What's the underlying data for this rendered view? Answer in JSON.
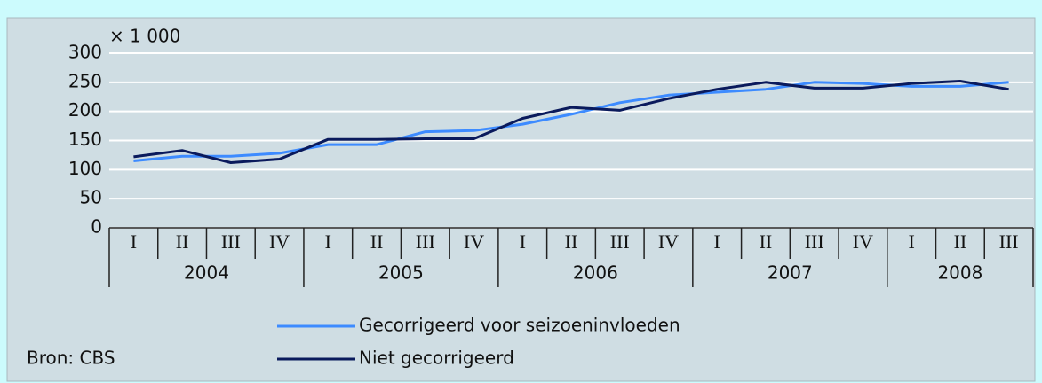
{
  "chart_data": {
    "type": "line",
    "unit_label": "× 1 000",
    "source": "Bron: CBS",
    "categories": [
      "I",
      "II",
      "III",
      "IV",
      "I",
      "II",
      "III",
      "IV",
      "I",
      "II",
      "III",
      "IV",
      "I",
      "II",
      "III",
      "IV",
      "I",
      "II",
      "III"
    ],
    "years": [
      {
        "label": "2004",
        "quarters": 4
      },
      {
        "label": "2005",
        "quarters": 4
      },
      {
        "label": "2006",
        "quarters": 4
      },
      {
        "label": "2007",
        "quarters": 4
      },
      {
        "label": "2008",
        "quarters": 3
      }
    ],
    "series": [
      {
        "name": "Gecorrigeerd voor seizoeninvloeden",
        "color": "#3d8bff",
        "values": [
          115,
          123,
          123,
          128,
          143,
          143,
          165,
          167,
          178,
          195,
          215,
          228,
          233,
          238,
          250,
          248,
          243,
          243,
          250
        ]
      },
      {
        "name": "Niet gecorrigeerd",
        "color": "#0a1a5c",
        "values": [
          122,
          133,
          112,
          118,
          152,
          152,
          153,
          153,
          188,
          207,
          202,
          222,
          238,
          250,
          240,
          240,
          248,
          252,
          238
        ]
      }
    ],
    "ylim": [
      0,
      300
    ],
    "yticks": [
      0,
      50,
      100,
      150,
      200,
      250,
      300
    ],
    "grid": true
  }
}
